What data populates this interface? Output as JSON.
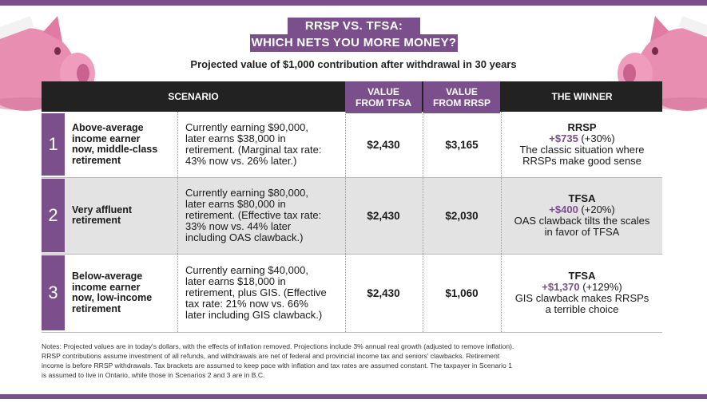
{
  "title": {
    "line1": "RRSP VS. TFSA:",
    "line2": "WHICH NETS YOU MORE MONEY?"
  },
  "subtitle": "Projected value of $1,000 contribution after withdrawal in 30 years",
  "headers": {
    "scenario": "SCENARIO",
    "tfsa": [
      "VALUE",
      "FROM TFSA"
    ],
    "rrsp": [
      "VALUE",
      "FROM RRSP"
    ],
    "winner": "THE WINNER"
  },
  "rows": [
    {
      "number": "1",
      "who": [
        "Above-average",
        "income earner",
        "now, middle-class",
        "retirement"
      ],
      "description": [
        "Currently earning $90,000,",
        "later earns $38,000 in",
        "retirement. (Marginal tax rate:",
        "43% now vs. 26% later.)"
      ],
      "tfsa_value": "$2,430",
      "rrsp_value": "$3,165",
      "winner": "RRSP",
      "gain_amount": "+$735",
      "gain_percent": "(+30%)",
      "comment": [
        "The classic situation where",
        "RRSPs make good sense"
      ]
    },
    {
      "number": "2",
      "who": [
        "Very affluent",
        "retirement"
      ],
      "description": [
        "Currently earning $80,000,",
        "later earns $80,000 in",
        "retirement. (Effective tax rate:",
        "33% now vs. 44% later",
        "including OAS clawback.)"
      ],
      "tfsa_value": "$2,430",
      "rrsp_value": "$2,030",
      "winner": "TFSA",
      "gain_amount": "+$400",
      "gain_percent": "(+20%)",
      "comment": [
        "OAS clawback tilts the scales",
        "in favor of TFSA"
      ]
    },
    {
      "number": "3",
      "who": [
        "Below-average",
        "income earner",
        "now, low-income",
        "retirement"
      ],
      "description": [
        "Currently earning $40,000,",
        "later earns $18,000 in",
        "retirement, plus GIS. (Effective",
        "tax rate: 21% now vs. 66%",
        "later including GIS clawback.)"
      ],
      "tfsa_value": "$2,430",
      "rrsp_value": "$1,060",
      "winner": "TFSA",
      "gain_amount": "+$1,370",
      "gain_percent": "(+129%)",
      "comment": [
        "GIS clawback makes RRSPs",
        "a terrible choice"
      ]
    }
  ],
  "notes": [
    "Notes: Projected values are in today's dollars, with the effects of inflation removed. Projections include 3% annual real growth (adjusted to remove inflation).",
    "RRSP contributions assume investment of all refunds, and withdrawals are net of federal and provincial income tax and seniors' clawbacks. Retirement",
    "income is before RRSP withdrawals. Tax brackets are assumed to keep pace with inflation and tax rates are assumed constant. The taxpayer in Scenario 1",
    "is assumed to live in Ontario, while those in Scenarios 2 and 3 are in B.C."
  ],
  "colors": {
    "accent": "#7b4f8c",
    "header": "#222222",
    "shaded_row": "#e3e3e3",
    "pig": "#e88fb1"
  },
  "icons": [
    "piggy-bank-left-icon",
    "piggy-bank-right-icon"
  ]
}
